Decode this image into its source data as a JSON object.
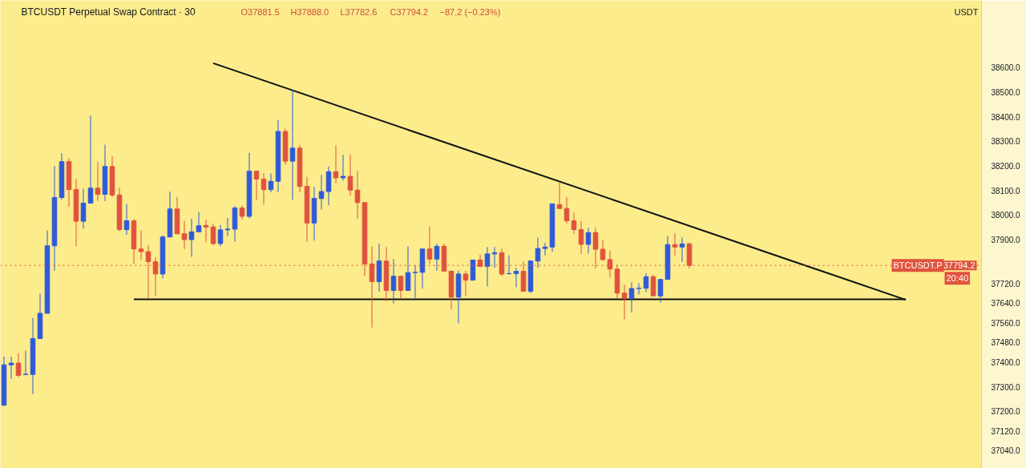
{
  "chart_data": {
    "type": "candlestick",
    "title": "BTCUSDT Perpetual Swap Contract · 30",
    "annotations": [
      "O37881.5",
      "H37888.0",
      "L37782.6",
      "C37794.2",
      "−87.2 (−0.23%)",
      "USDT",
      "BTCUSDT.P",
      "20:40"
    ],
    "categories": [
      null,
      null,
      null,
      null,
      null,
      null,
      null,
      null,
      null,
      null,
      null,
      null,
      null,
      null,
      null,
      null,
      null,
      null,
      null,
      null,
      null,
      null,
      null,
      null,
      null,
      null,
      null,
      null,
      null,
      null,
      null,
      null,
      null,
      null,
      null,
      null,
      null,
      null,
      null,
      null,
      null,
      null,
      null,
      null,
      null,
      null,
      null,
      null,
      null,
      null,
      null,
      null,
      null,
      null,
      null,
      null,
      null,
      null,
      null,
      null,
      null,
      null,
      null,
      null,
      null,
      null,
      null,
      null,
      null,
      null,
      null,
      null,
      null,
      null,
      null,
      null,
      null,
      null,
      null,
      null,
      null,
      null,
      null,
      null,
      null,
      null,
      null,
      null,
      null,
      null,
      null,
      null,
      null,
      null,
      null,
      null,
      null,
      null,
      null,
      null,
      null,
      null,
      null,
      null,
      null,
      null,
      null,
      null,
      null,
      null,
      null,
      null,
      null,
      null,
      null,
      null,
      null,
      null,
      null,
      null,
      null,
      null,
      null,
      null,
      null,
      null,
      null,
      null,
      null,
      null,
      null,
      null,
      null,
      null,
      null,
      null
    ],
    "colors": [
      "#2f5ad9",
      "#2f5ad9",
      "#e0533d",
      "#2f5ad9",
      "#2f5ad9",
      "#2f5ad9",
      "#2f5ad9",
      "#2f5ad9",
      "#2f5ad9",
      "#e0533d",
      "#e0533d",
      "#2f5ad9",
      "#2f5ad9",
      "#e0533d",
      "#2f5ad9",
      "#e0533d",
      "#e0533d",
      "#2f5ad9",
      "#e0533d",
      "#e0533d",
      "#e0533d",
      "#e0533d",
      "#2f5ad9",
      "#2f5ad9",
      "#e0533d",
      "#e0533d",
      "#2f5ad9",
      "#2f5ad9",
      "#e0533d",
      "#e0533d",
      "#2f5ad9",
      "#2f5ad9",
      "#2f5ad9",
      "#e0533d",
      "#2f5ad9",
      "#e0533d",
      "#e0533d",
      "#2f5ad9",
      "#2f5ad9",
      "#e0533d",
      "#2f5ad9",
      "#e0533d",
      "#e0533d",
      "#2f5ad9",
      "#2f5ad9",
      "#2f5ad9",
      "#e0533d",
      "#2f5ad9",
      "#e0533d",
      "#e0533d",
      "#e0533d",
      "#e0533d",
      "#2f5ad9",
      "#e0533d",
      "#2f5ad9",
      "#e0533d",
      "#2f5ad9",
      "#2f5ad9",
      "#2f5ad9",
      "#e0533d",
      "#2f5ad9",
      "#e0533d",
      "#e0533d",
      "#2f5ad9",
      "#e0533d",
      "#2f5ad9",
      "#e0533d",
      "#2f5ad9",
      "#2f5ad9",
      "#e0533d",
      "#2f5ad9",
      "#2f5ad9",
      "#e0533d",
      "#2f5ad9",
      "#2f5ad9",
      "#2f5ad9",
      "#2f5ad9",
      "#e0533d",
      "#e0533d",
      "#e0533d",
      "#e0533d",
      "#2f5ad9",
      "#e0533d",
      "#e0533d",
      "#e0533d",
      "#e0533d",
      "#e0533d",
      "#2f5ad9",
      "#2f5ad9",
      "#2f5ad9",
      "#e0533d",
      "#2f5ad9",
      "#2f5ad9",
      "#e0533d",
      "#2f5ad9",
      "#e0533d",
      null,
      null,
      null,
      null,
      null,
      null,
      null,
      null,
      null,
      null,
      null,
      null,
      null,
      null,
      null,
      null,
      null,
      null,
      null,
      null,
      null,
      null,
      null,
      null,
      null,
      null,
      null,
      null,
      null,
      null,
      null,
      null,
      null,
      null,
      null,
      null,
      null,
      null,
      null,
      null
    ],
    "ohlc": [
      [
        37225,
        37422,
        37220,
        37389
      ],
      [
        37389,
        37422,
        37332,
        37396
      ],
      [
        37396,
        37436,
        37338,
        37346
      ],
      [
        37350,
        37447,
        37347,
        37351
      ],
      [
        37350,
        37580,
        37270,
        37496
      ],
      [
        37496,
        37679,
        37496,
        37599
      ],
      [
        37599,
        37936,
        37599,
        37874
      ],
      [
        37874,
        38200,
        37773,
        38071
      ],
      [
        38071,
        38251,
        38062,
        38217
      ],
      [
        38217,
        38231,
        38033,
        38103
      ],
      [
        38103,
        38146,
        37872,
        37974
      ],
      [
        37974,
        38107,
        37944,
        38048
      ],
      [
        38048,
        38405,
        38048,
        38109
      ],
      [
        38109,
        38216,
        38056,
        38084
      ],
      [
        38084,
        38286,
        38056,
        38197
      ],
      [
        38197,
        38239,
        38073,
        38081
      ],
      [
        38081,
        38112,
        37934,
        37940
      ],
      [
        37940,
        38045,
        37919,
        37976
      ],
      [
        37976,
        37983,
        37801,
        37861
      ],
      [
        37861,
        37936,
        37818,
        37850
      ],
      [
        37850,
        37877,
        37661,
        37809
      ],
      [
        37809,
        37827,
        37670,
        37759
      ],
      [
        37759,
        37917,
        37741,
        37910
      ],
      [
        37910,
        38095,
        37910,
        38024
      ],
      [
        38024,
        38073,
        37923,
        37923
      ],
      [
        37923,
        37976,
        37861,
        37899
      ],
      [
        37899,
        37985,
        37829,
        37931
      ],
      [
        37931,
        38011,
        37931,
        37956
      ],
      [
        37957,
        37981,
        37888,
        37951
      ],
      [
        37951,
        37965,
        37877,
        37883
      ],
      [
        37883,
        37959,
        37872,
        37939
      ],
      [
        37939,
        37987,
        37914,
        37942
      ],
      [
        37942,
        38036,
        37891,
        38028
      ],
      [
        38028,
        38039,
        37981,
        37994
      ],
      [
        37994,
        38253,
        37986,
        38178
      ],
      [
        38178,
        38178,
        38062,
        38146
      ],
      [
        38146,
        38169,
        38042,
        38103
      ],
      [
        38103,
        38169,
        38092,
        38137
      ],
      [
        38137,
        38387,
        38092,
        38340
      ],
      [
        38340,
        38351,
        38205,
        38219
      ],
      [
        38219,
        38511,
        38062,
        38272
      ],
      [
        38272,
        38286,
        38092,
        38116
      ],
      [
        38116,
        38155,
        37891,
        37967
      ],
      [
        37967,
        38115,
        37895,
        38067
      ],
      [
        38067,
        38163,
        38022,
        38095
      ],
      [
        38095,
        38197,
        38039,
        38176
      ],
      [
        38176,
        38284,
        38129,
        38151
      ],
      [
        38151,
        38245,
        38140,
        38157
      ],
      [
        38157,
        38247,
        38079,
        38101
      ],
      [
        38101,
        38178,
        37983,
        38050
      ],
      [
        38050,
        38050,
        37750,
        37800
      ],
      [
        37800,
        37872,
        37541,
        37728
      ],
      [
        37728,
        37883,
        37687,
        37812
      ],
      [
        37812,
        37869,
        37648,
        37692
      ],
      [
        37692,
        37820,
        37639,
        37750
      ],
      [
        37750,
        37750,
        37661,
        37692
      ],
      [
        37692,
        37872,
        37692,
        37765
      ],
      [
        37765,
        37795,
        37661,
        37766
      ],
      [
        37766,
        37861,
        37700,
        37861
      ],
      [
        37861,
        37953,
        37801,
        37820
      ],
      [
        37820,
        37883,
        37773,
        37872
      ],
      [
        37872,
        37883,
        37771,
        37771
      ],
      [
        37771,
        37771,
        37616,
        37665
      ],
      [
        37665,
        37773,
        37558,
        37759
      ],
      [
        37759,
        37773,
        37670,
        37734
      ],
      [
        37734,
        37816,
        37734,
        37816
      ],
      [
        37816,
        37838,
        37790,
        37790
      ],
      [
        37790,
        37869,
        37708,
        37841
      ],
      [
        37841,
        37869,
        37784,
        37846
      ],
      [
        37846,
        37863,
        37750,
        37759
      ],
      [
        37760,
        37835,
        37758,
        37761
      ],
      [
        37761,
        37784,
        37705,
        37770
      ],
      [
        37770,
        37809,
        37689,
        37689
      ],
      [
        37689,
        37812,
        37681,
        37812
      ],
      [
        37812,
        37908,
        37784,
        37863
      ],
      [
        37863,
        37886,
        37835,
        37869
      ],
      [
        37869,
        38045,
        37850,
        38045
      ],
      [
        38042,
        38135,
        38026,
        38026
      ],
      [
        38026,
        38073,
        37965,
        37976
      ],
      [
        37976,
        38011,
        37922,
        37940
      ],
      [
        37940,
        37974,
        37841,
        37880
      ],
      [
        37880,
        37948,
        37843,
        37928
      ],
      [
        37928,
        37948,
        37782,
        37860
      ],
      [
        37860,
        37899,
        37812,
        37818
      ],
      [
        37818,
        37854,
        37745,
        37779
      ],
      [
        37779,
        37796,
        37659,
        37681
      ],
      [
        37681,
        37715,
        37574,
        37659
      ],
      [
        37659,
        37726,
        37603,
        37700
      ],
      [
        37700,
        37722,
        37676,
        37701
      ],
      [
        37701,
        37762,
        37685,
        37748
      ],
      [
        37748,
        37756,
        37670,
        37670
      ],
      [
        37670,
        37737,
        37642,
        37737
      ],
      [
        37737,
        37914,
        37737,
        37879
      ],
      [
        37879,
        37925,
        37835,
        37869
      ],
      [
        37869,
        37908,
        37809,
        37881.5
      ],
      [
        37881.5,
        37888.0,
        37782.6,
        37794.2
      ],
      null,
      null,
      null,
      null,
      null,
      null,
      null,
      null,
      null,
      null,
      null,
      null,
      null,
      null,
      null,
      null,
      null,
      null,
      null,
      null,
      null,
      null,
      null,
      null,
      null,
      null,
      null,
      null,
      null,
      null,
      null,
      null,
      null,
      null,
      null,
      null,
      null,
      null,
      null,
      null
    ],
    "series": [
      {
        "type": "line",
        "color": "#111111",
        "values": [
          null,
          null,
          null,
          null,
          null,
          null,
          null,
          null,
          null,
          null,
          null,
          null,
          null,
          null,
          null,
          null,
          null,
          null,
          null,
          null,
          null,
          null,
          null,
          null,
          null,
          null,
          null,
          null,
          null,
          38618,
          null,
          null,
          null,
          null,
          null,
          null,
          null,
          null,
          null,
          null,
          null,
          null,
          null,
          null,
          null,
          null,
          null,
          null,
          null,
          null,
          null,
          null,
          null,
          null,
          null,
          null,
          null,
          null,
          null,
          null,
          null,
          null,
          null,
          null,
          null,
          null,
          null,
          null,
          null,
          null,
          null,
          null,
          null,
          null,
          null,
          null,
          null,
          null,
          null,
          null,
          null,
          null,
          null,
          null,
          null,
          null,
          null,
          null,
          null,
          null,
          null,
          null,
          null,
          null,
          null,
          null,
          null,
          null,
          null,
          null,
          null,
          null,
          null,
          null,
          null,
          null,
          null,
          null,
          null,
          null,
          null,
          null,
          null,
          null,
          null,
          null,
          null,
          null,
          null,
          null,
          null,
          null,
          null,
          null,
          null,
          37654,
          null,
          null,
          null,
          null,
          null,
          null,
          null,
          null,
          null,
          null
        ]
      },
      {
        "type": "line",
        "color": "#111111",
        "values": [
          null,
          null,
          null,
          null,
          null,
          null,
          null,
          null,
          null,
          null,
          null,
          null,
          null,
          null,
          null,
          null,
          null,
          null,
          37656,
          null,
          null,
          null,
          null,
          null,
          null,
          null,
          null,
          null,
          null,
          null,
          null,
          null,
          null,
          null,
          null,
          null,
          null,
          null,
          null,
          null,
          null,
          null,
          null,
          null,
          null,
          null,
          null,
          null,
          null,
          null,
          null,
          null,
          null,
          null,
          null,
          null,
          null,
          null,
          null,
          null,
          null,
          null,
          null,
          null,
          null,
          null,
          null,
          null,
          null,
          null,
          null,
          null,
          null,
          null,
          null,
          null,
          null,
          null,
          null,
          null,
          null,
          null,
          null,
          null,
          null,
          null,
          null,
          null,
          null,
          null,
          null,
          null,
          null,
          null,
          null,
          null,
          null,
          null,
          null,
          null,
          null,
          null,
          null,
          null,
          null,
          null,
          null,
          null,
          null,
          null,
          null,
          null,
          null,
          null,
          null,
          null,
          null,
          null,
          null,
          null,
          null,
          null,
          null,
          null,
          null,
          37656,
          null,
          null,
          null,
          null,
          null,
          null,
          null,
          null,
          null,
          null
        ]
      }
    ],
    "ref_lines": [
      {
        "axis": "y",
        "value": 37794.2,
        "label": "37794.2",
        "color": "#e0533d",
        "line_style": "dotted"
      }
    ],
    "ylim": [
      36967,
      38874
    ],
    "yticks": [
      {
        "value": 38600,
        "label": "38600.0"
      },
      {
        "value": 38500,
        "label": "38500.0"
      },
      {
        "value": 38400,
        "label": "38400.0"
      },
      {
        "value": 38300,
        "label": "38300.0"
      },
      {
        "value": 38200,
        "label": "38200.0"
      },
      {
        "value": 38100,
        "label": "38100.0"
      },
      {
        "value": 38000,
        "label": "38000.0"
      },
      {
        "value": 37900,
        "label": "37900.0"
      },
      {
        "value": 37720,
        "label": "37720.0"
      },
      {
        "value": 37640,
        "label": "37640.0"
      },
      {
        "value": 37560,
        "label": "37560.0"
      },
      {
        "value": 37480,
        "label": "37480.0"
      },
      {
        "value": 37400,
        "label": "37400.0"
      },
      {
        "value": 37300,
        "label": "37300.0"
      },
      {
        "value": 37200,
        "label": "37200.0"
      },
      {
        "value": 37120,
        "label": "37120.0"
      },
      {
        "value": 37040,
        "label": "37040.0"
      }
    ]
  }
}
